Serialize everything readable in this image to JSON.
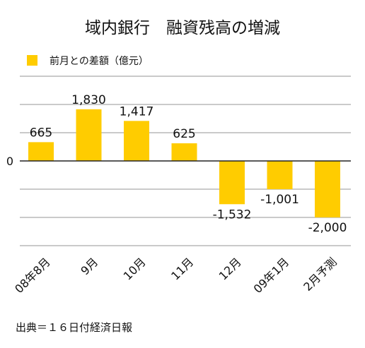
{
  "chart_data": {
    "type": "bar",
    "title": "域内銀行　融資残高の増減",
    "legend": {
      "label": "前月との差額（億元）",
      "color": "#ffcc00",
      "position": "top-left"
    },
    "categories": [
      "08年8月",
      "9月",
      "10月",
      "11月",
      "12月",
      "09年1月",
      "2月予測"
    ],
    "series": [
      {
        "name": "前月との差額（億元）",
        "values": [
          665,
          1830,
          1417,
          625,
          -1532,
          -1001,
          -2000
        ],
        "labels": [
          "665",
          "1,830",
          "1,417",
          "625",
          "-1,532",
          "-1,001",
          "-2,000"
        ]
      }
    ],
    "ylim": [
      -3000,
      3000
    ],
    "y_gridlines": [
      -3000,
      -2000,
      -1000,
      0,
      1000,
      2000,
      3000
    ],
    "zero_label": "0",
    "grid": true,
    "bar_color": "#ffcc00",
    "source": "出典＝１６日付経済日報"
  }
}
